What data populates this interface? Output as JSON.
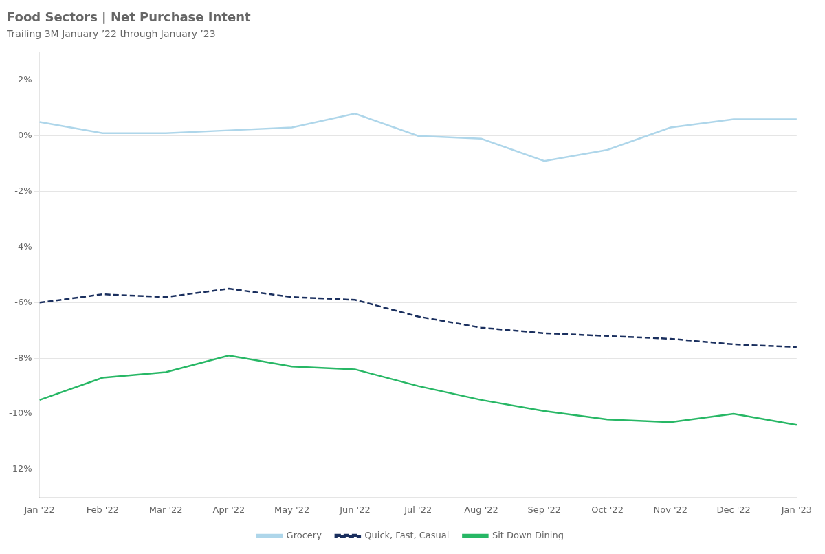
{
  "chart_data": {
    "type": "line",
    "title": "Food Sectors | Net Purchase Intent",
    "subtitle": "Trailing 3M January ’22 through January ’23",
    "categories": [
      "Jan '22",
      "Feb '22",
      "Mar '22",
      "Apr '22",
      "May '22",
      "Jun '22",
      "Jul '22",
      "Aug '22",
      "Sep '22",
      "Oct '22",
      "Nov '22",
      "Dec '22",
      "Jan '23"
    ],
    "series": [
      {
        "name": "Grocery",
        "color": "#aed6ea",
        "line_style": "solid",
        "values": [
          0.5,
          0.1,
          0.1,
          0.2,
          0.3,
          0.8,
          0.0,
          -0.1,
          -0.9,
          -0.5,
          0.3,
          0.6,
          0.6
        ]
      },
      {
        "name": "Quick, Fast, Casual",
        "color": "#1a2f5e",
        "line_style": "dashed",
        "values": [
          -6.0,
          -5.7,
          -5.8,
          -5.5,
          -5.8,
          -5.9,
          -6.5,
          -6.9,
          -7.1,
          -7.2,
          -7.3,
          -7.5,
          -7.6
        ]
      },
      {
        "name": "Sit Down Dining",
        "color": "#27b765",
        "line_style": "solid",
        "values": [
          -9.5,
          -8.7,
          -8.5,
          -7.9,
          -8.3,
          -8.4,
          -9.0,
          -9.5,
          -9.9,
          -10.2,
          -10.3,
          -10.0,
          -10.4
        ]
      }
    ],
    "ylim": [
      -13,
      3
    ],
    "yticks": [
      {
        "value": -12,
        "label": "-12%"
      },
      {
        "value": -10,
        "label": "-10%"
      },
      {
        "value": -8,
        "label": "-8%"
      },
      {
        "value": -6,
        "label": "-6%"
      },
      {
        "value": -4,
        "label": "-4%"
      },
      {
        "value": -2,
        "label": "-2%"
      },
      {
        "value": 0,
        "label": "0%"
      },
      {
        "value": 2,
        "label": "2%"
      }
    ],
    "grid": true,
    "legend": "bottom",
    "marker": "none"
  }
}
